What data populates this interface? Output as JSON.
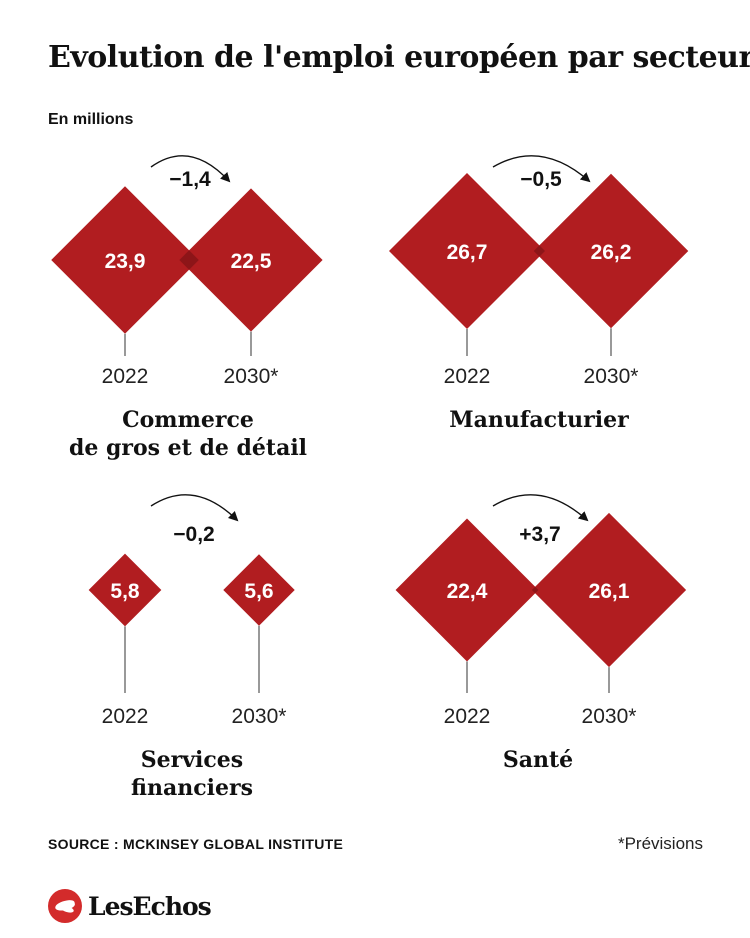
{
  "title": "Evolution de l'emploi européen par secteur",
  "unit_label": "En millions",
  "colors": {
    "diamond": "#b11d20",
    "overlap": "#8d1518",
    "text_on_diamond": "#ffffff"
  },
  "chart_data": {
    "type": "diamond-comparison",
    "categories": [
      "2022",
      "2030*"
    ],
    "panels": [
      {
        "sector": [
          "Commerce",
          "de gros et de détail"
        ],
        "years": [
          "2022",
          "2030*"
        ],
        "values": [
          23.9,
          22.5
        ],
        "value_labels": [
          "23,9",
          "22,5"
        ],
        "change_label": "−1,4"
      },
      {
        "sector": [
          "Manufacturier"
        ],
        "years": [
          "2022",
          "2030*"
        ],
        "values": [
          26.7,
          26.2
        ],
        "value_labels": [
          "26,7",
          "26,2"
        ],
        "change_label": "−0,5"
      },
      {
        "sector": [
          "Services",
          "financiers"
        ],
        "years": [
          "2022",
          "2030*"
        ],
        "values": [
          5.8,
          5.6
        ],
        "value_labels": [
          "5,8",
          "5,6"
        ],
        "change_label": "−0,2"
      },
      {
        "sector": [
          "Santé"
        ],
        "years": [
          "2022",
          "2030*"
        ],
        "values": [
          22.4,
          26.1
        ],
        "value_labels": [
          "22,4",
          "26,1"
        ],
        "change_label": "+3,7"
      }
    ]
  },
  "source": "SOURCE : MCKINSEY GLOBAL INSTITUTE",
  "footnote": "*Prévisions",
  "logo_text": "LesEchos"
}
